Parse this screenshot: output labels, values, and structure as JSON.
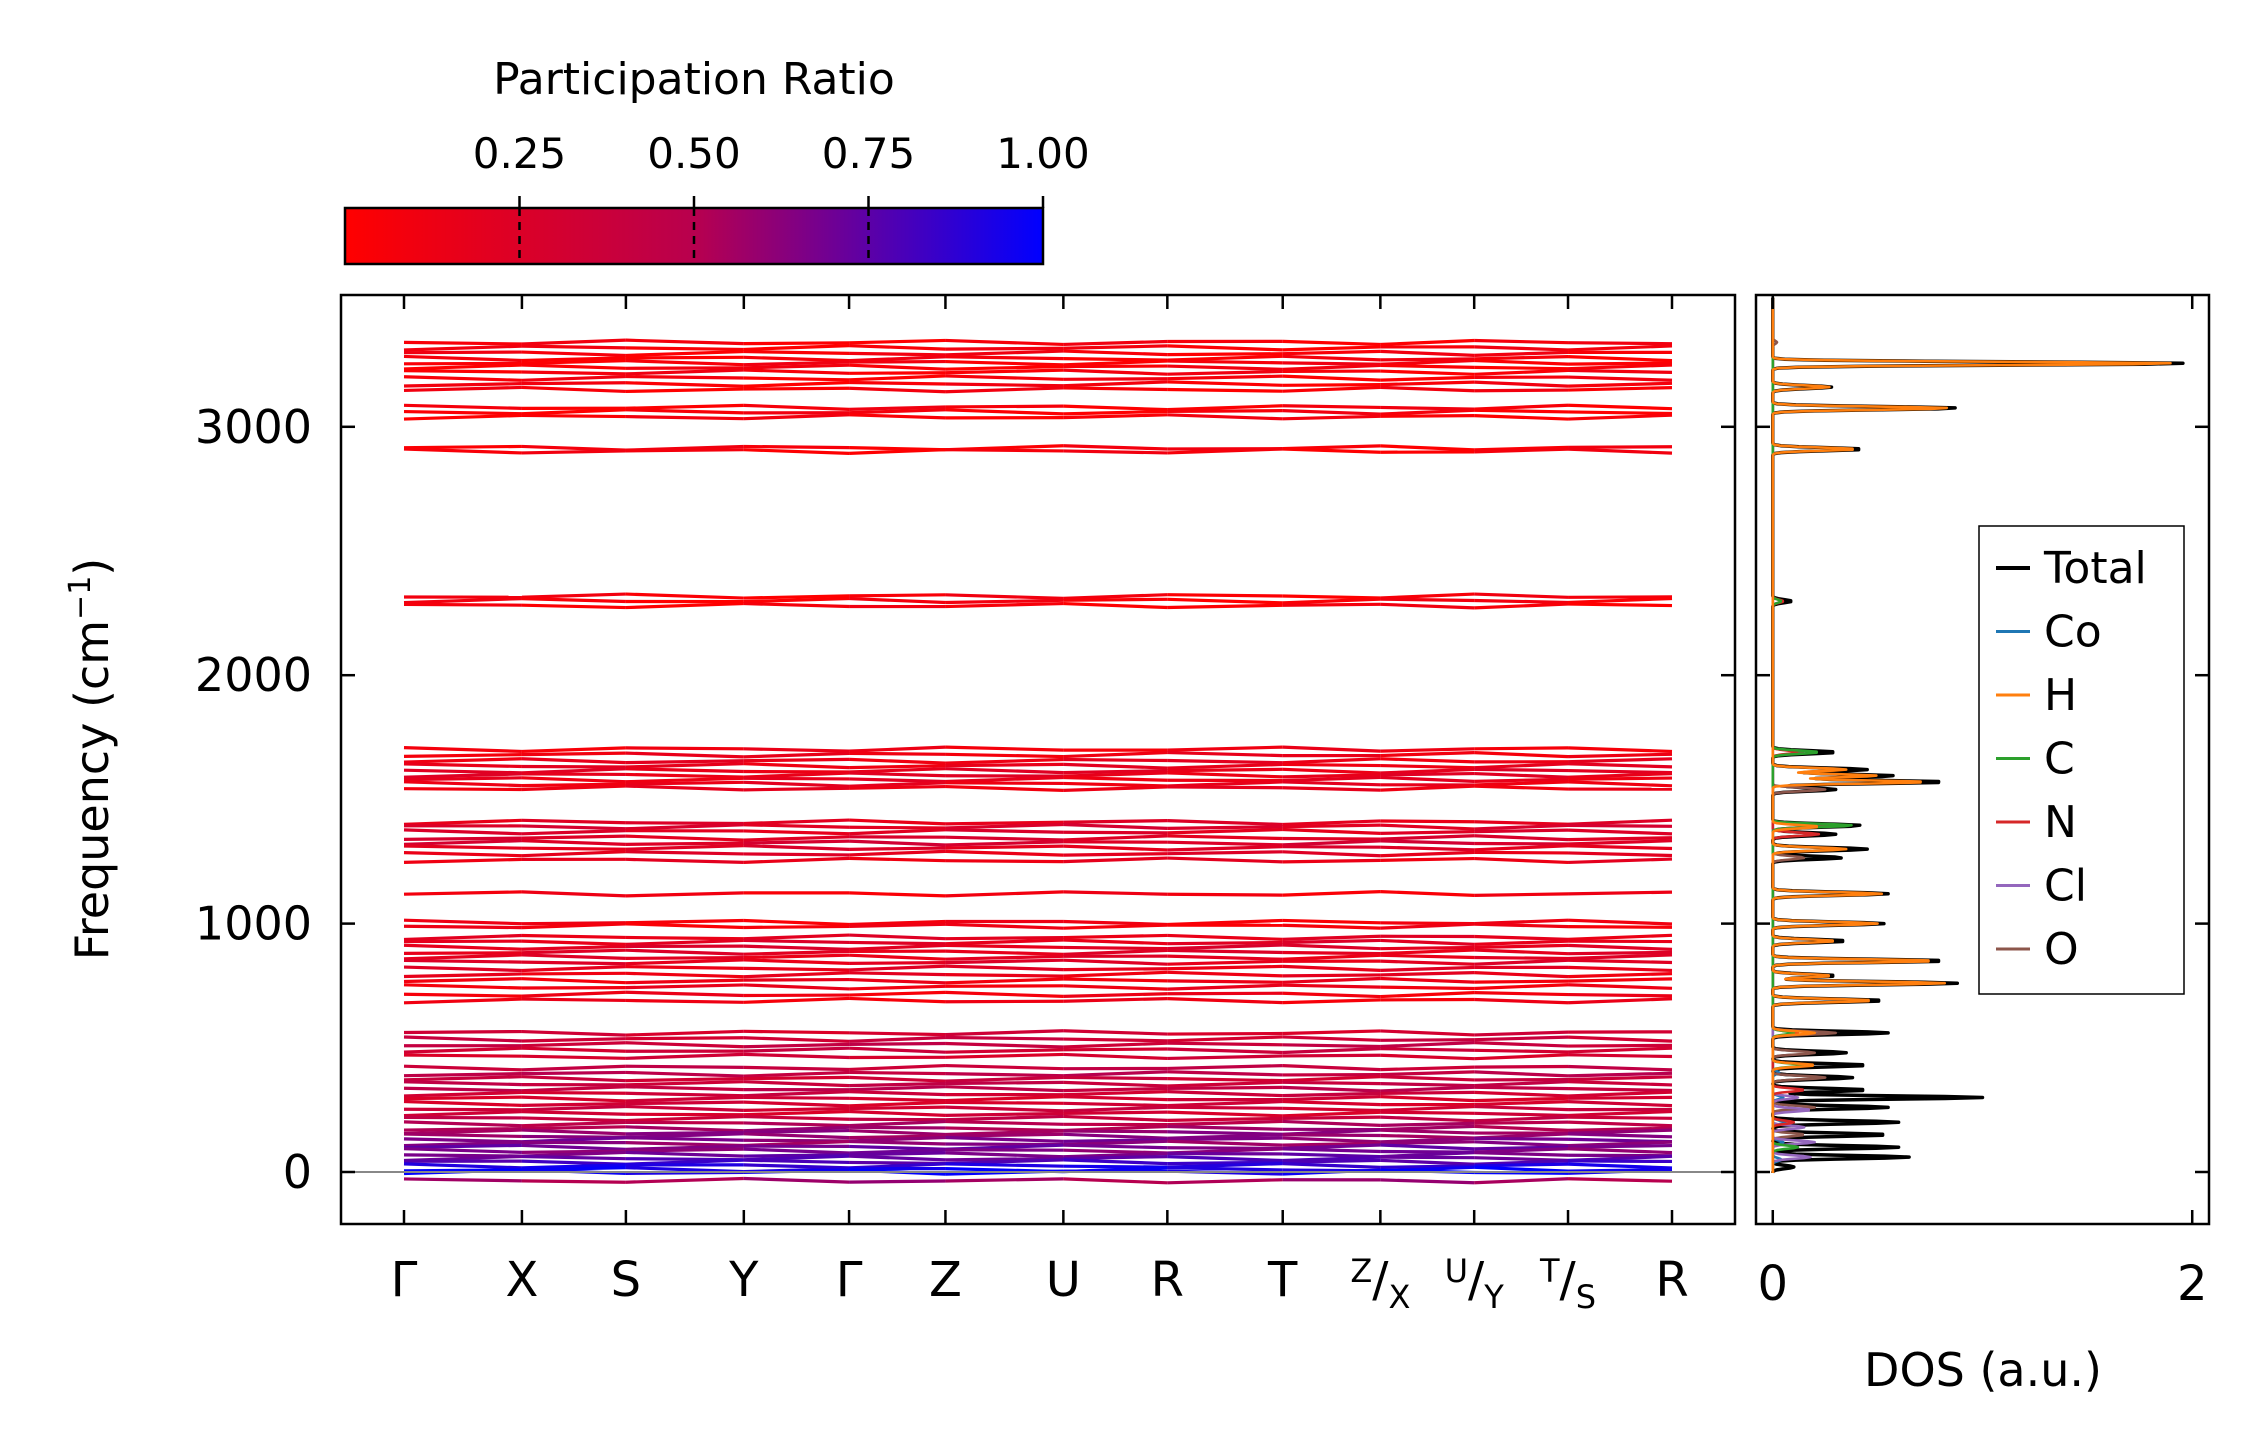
{
  "chart_data": [
    {
      "type": "line",
      "title": "",
      "xlabel": "",
      "ylabel": "Frequency (cm⁻¹)",
      "ylabel_main": "Frequency (cm",
      "ylabel_exp": "−1",
      "ylabel_close": ")",
      "ylim": [
        -200,
        3520
      ],
      "yticks": [
        0,
        1000,
        2000,
        3000
      ],
      "ytick_labels": [
        "0",
        "1000",
        "2000",
        "3000"
      ],
      "kpath_labels": [
        "Γ",
        "X",
        "S",
        "Y",
        "Γ",
        "Z",
        "U",
        "R",
        "T"
      ],
      "kpath_positions": [
        0,
        0.093,
        0.175,
        0.268,
        0.351,
        0.427,
        0.52,
        0.602,
        0.693,
        0.77,
        0.844,
        0.918,
        1.0
      ],
      "split_labels": [
        {
          "sup": "Z",
          "sub": "X"
        },
        {
          "sup": "U",
          "sub": "Y"
        },
        {
          "sup": "T",
          "sub": "S"
        }
      ],
      "end_label": "R",
      "bands": [
        {
          "frequency": 3340,
          "pr": 0.05
        },
        {
          "frequency": 3318,
          "pr": 0.05
        },
        {
          "frequency": 3296,
          "pr": 0.06
        },
        {
          "frequency": 3275,
          "pr": 0.05
        },
        {
          "frequency": 3258,
          "pr": 0.06
        },
        {
          "frequency": 3240,
          "pr": 0.05
        },
        {
          "frequency": 3220,
          "pr": 0.06
        },
        {
          "frequency": 3196,
          "pr": 0.05
        },
        {
          "frequency": 3172,
          "pr": 0.05
        },
        {
          "frequency": 3150,
          "pr": 0.05
        },
        {
          "frequency": 3078,
          "pr": 0.05
        },
        {
          "frequency": 3060,
          "pr": 0.05
        },
        {
          "frequency": 3040,
          "pr": 0.05
        },
        {
          "frequency": 2915,
          "pr": 0.05
        },
        {
          "frequency": 2902,
          "pr": 0.05
        },
        {
          "frequency": 2318,
          "pr": 0.05
        },
        {
          "frequency": 2300,
          "pr": 0.05
        },
        {
          "frequency": 2280,
          "pr": 0.05
        },
        {
          "frequency": 1702,
          "pr": 0.1
        },
        {
          "frequency": 1680,
          "pr": 0.12
        },
        {
          "frequency": 1655,
          "pr": 0.15
        },
        {
          "frequency": 1635,
          "pr": 0.15
        },
        {
          "frequency": 1615,
          "pr": 0.18
        },
        {
          "frequency": 1598,
          "pr": 0.18
        },
        {
          "frequency": 1580,
          "pr": 0.16
        },
        {
          "frequency": 1562,
          "pr": 0.15
        },
        {
          "frequency": 1545,
          "pr": 0.14
        },
        {
          "frequency": 1408,
          "pr": 0.2
        },
        {
          "frequency": 1390,
          "pr": 0.25
        },
        {
          "frequency": 1370,
          "pr": 0.22
        },
        {
          "frequency": 1345,
          "pr": 0.24
        },
        {
          "frequency": 1325,
          "pr": 0.28
        },
        {
          "frequency": 1305,
          "pr": 0.22
        },
        {
          "frequency": 1282,
          "pr": 0.2
        },
        {
          "frequency": 1255,
          "pr": 0.15
        },
        {
          "frequency": 1120,
          "pr": 0.08
        },
        {
          "frequency": 1005,
          "pr": 0.08
        },
        {
          "frequency": 990,
          "pr": 0.08
        },
        {
          "frequency": 945,
          "pr": 0.18
        },
        {
          "frequency": 925,
          "pr": 0.2
        },
        {
          "frequency": 905,
          "pr": 0.22
        },
        {
          "frequency": 885,
          "pr": 0.2
        },
        {
          "frequency": 865,
          "pr": 0.18
        },
        {
          "frequency": 845,
          "pr": 0.2
        },
        {
          "frequency": 820,
          "pr": 0.18
        },
        {
          "frequency": 795,
          "pr": 0.15
        },
        {
          "frequency": 770,
          "pr": 0.12
        },
        {
          "frequency": 745,
          "pr": 0.12
        },
        {
          "frequency": 715,
          "pr": 0.1
        },
        {
          "frequency": 690,
          "pr": 0.1
        },
        {
          "frequency": 560,
          "pr": 0.3
        },
        {
          "frequency": 535,
          "pr": 0.35
        },
        {
          "frequency": 512,
          "pr": 0.4
        },
        {
          "frequency": 490,
          "pr": 0.35
        },
        {
          "frequency": 465,
          "pr": 0.3
        },
        {
          "frequency": 420,
          "pr": 0.4
        },
        {
          "frequency": 395,
          "pr": 0.45
        },
        {
          "frequency": 375,
          "pr": 0.35
        },
        {
          "frequency": 355,
          "pr": 0.4
        },
        {
          "frequency": 335,
          "pr": 0.45
        },
        {
          "frequency": 315,
          "pr": 0.35
        },
        {
          "frequency": 295,
          "pr": 0.3
        },
        {
          "frequency": 275,
          "pr": 0.3
        },
        {
          "frequency": 255,
          "pr": 0.35
        },
        {
          "frequency": 235,
          "pr": 0.3
        },
        {
          "frequency": 215,
          "pr": 0.4
        },
        {
          "frequency": 195,
          "pr": 0.5
        },
        {
          "frequency": 175,
          "pr": 0.55
        },
        {
          "frequency": 160,
          "pr": 0.6
        },
        {
          "frequency": 145,
          "pr": 0.6
        },
        {
          "frequency": 130,
          "pr": 0.65
        },
        {
          "frequency": 115,
          "pr": 0.6
        },
        {
          "frequency": 100,
          "pr": 0.7
        },
        {
          "frequency": 85,
          "pr": 0.65
        },
        {
          "frequency": 70,
          "pr": 0.7
        },
        {
          "frequency": 55,
          "pr": 0.75
        },
        {
          "frequency": 40,
          "pr": 0.8
        },
        {
          "frequency": 25,
          "pr": 0.9
        },
        {
          "frequency": 10,
          "pr": 0.95
        },
        {
          "frequency": 0,
          "pr": 0.98
        },
        {
          "frequency": -35,
          "pr": 0.55
        }
      ]
    },
    {
      "type": "line",
      "title": "",
      "xlabel": "DOS (a.u.)",
      "ylabel": "",
      "xlim": [
        -0.08,
        2.08
      ],
      "xticks": [
        0,
        2
      ],
      "xtick_labels": [
        "0",
        "2"
      ],
      "ylim": [
        -200,
        3520
      ],
      "legend_position": "right",
      "series": [
        {
          "name": "Total",
          "color": "#000000",
          "peaks": [
            {
              "f": 3255,
              "a": 1.98
            },
            {
              "f": 3160,
              "a": 0.28
            },
            {
              "f": 3075,
              "a": 0.88
            },
            {
              "f": 2910,
              "a": 0.43
            },
            {
              "f": 2298,
              "a": 0.09
            },
            {
              "f": 1690,
              "a": 0.3
            },
            {
              "f": 1620,
              "a": 0.45
            },
            {
              "f": 1595,
              "a": 0.58
            },
            {
              "f": 1570,
              "a": 0.83
            },
            {
              "f": 1540,
              "a": 0.3
            },
            {
              "f": 1395,
              "a": 0.42
            },
            {
              "f": 1360,
              "a": 0.3
            },
            {
              "f": 1300,
              "a": 0.45
            },
            {
              "f": 1265,
              "a": 0.33
            },
            {
              "f": 1120,
              "a": 0.55
            },
            {
              "f": 1000,
              "a": 0.53
            },
            {
              "f": 930,
              "a": 0.35
            },
            {
              "f": 850,
              "a": 0.83
            },
            {
              "f": 790,
              "a": 0.3
            },
            {
              "f": 760,
              "a": 0.88
            },
            {
              "f": 690,
              "a": 0.53
            },
            {
              "f": 560,
              "a": 0.55
            },
            {
              "f": 480,
              "a": 0.35
            },
            {
              "f": 430,
              "a": 0.45
            },
            {
              "f": 380,
              "a": 0.38
            },
            {
              "f": 330,
              "a": 0.45
            },
            {
              "f": 300,
              "a": 1.0
            },
            {
              "f": 260,
              "a": 0.55
            },
            {
              "f": 200,
              "a": 0.6
            },
            {
              "f": 150,
              "a": 0.55
            },
            {
              "f": 100,
              "a": 0.6
            },
            {
              "f": 60,
              "a": 0.65
            },
            {
              "f": 20,
              "a": 0.1
            }
          ]
        },
        {
          "name": "Co",
          "color": "#1f77b4",
          "peaks": [
            {
              "f": 400,
              "a": 0.03
            },
            {
              "f": 300,
              "a": 0.05
            },
            {
              "f": 200,
              "a": 0.06
            },
            {
              "f": 120,
              "a": 0.05
            },
            {
              "f": 50,
              "a": 0.04
            }
          ]
        },
        {
          "name": "H",
          "color": "#ff7f0e",
          "peaks": [
            {
              "f": 3255,
              "a": 1.92
            },
            {
              "f": 3160,
              "a": 0.27
            },
            {
              "f": 3075,
              "a": 0.84
            },
            {
              "f": 2910,
              "a": 0.4
            },
            {
              "f": 1620,
              "a": 0.35
            },
            {
              "f": 1595,
              "a": 0.5
            },
            {
              "f": 1570,
              "a": 0.74
            },
            {
              "f": 1390,
              "a": 0.22
            },
            {
              "f": 1300,
              "a": 0.35
            },
            {
              "f": 1120,
              "a": 0.52
            },
            {
              "f": 1000,
              "a": 0.5
            },
            {
              "f": 930,
              "a": 0.3
            },
            {
              "f": 850,
              "a": 0.78
            },
            {
              "f": 790,
              "a": 0.28
            },
            {
              "f": 760,
              "a": 0.82
            },
            {
              "f": 690,
              "a": 0.48
            },
            {
              "f": 560,
              "a": 0.2
            },
            {
              "f": 430,
              "a": 0.2
            }
          ]
        },
        {
          "name": "C",
          "color": "#2ca02c",
          "peaks": [
            {
              "f": 2298,
              "a": 0.04
            },
            {
              "f": 1690,
              "a": 0.22
            },
            {
              "f": 1395,
              "a": 0.38
            },
            {
              "f": 560,
              "a": 0.1
            },
            {
              "f": 430,
              "a": 0.15
            },
            {
              "f": 100,
              "a": 0.12
            }
          ]
        },
        {
          "name": "N",
          "color": "#d62728",
          "peaks": [
            {
              "f": 2298,
              "a": 0.05
            },
            {
              "f": 1690,
              "a": 0.12
            },
            {
              "f": 1360,
              "a": 0.22
            },
            {
              "f": 560,
              "a": 0.12
            },
            {
              "f": 330,
              "a": 0.15
            },
            {
              "f": 200,
              "a": 0.1
            }
          ]
        },
        {
          "name": "Cl",
          "color": "#9467bd",
          "peaks": [
            {
              "f": 300,
              "a": 0.12
            },
            {
              "f": 250,
              "a": 0.18
            },
            {
              "f": 180,
              "a": 0.15
            },
            {
              "f": 120,
              "a": 0.2
            },
            {
              "f": 60,
              "a": 0.18
            }
          ]
        },
        {
          "name": "O",
          "color": "#8c564b",
          "peaks": [
            {
              "f": 3340,
              "a": 0.02
            },
            {
              "f": 2298,
              "a": 0.04
            },
            {
              "f": 1690,
              "a": 0.15
            },
            {
              "f": 1540,
              "a": 0.25
            },
            {
              "f": 1395,
              "a": 0.3
            },
            {
              "f": 1265,
              "a": 0.15
            },
            {
              "f": 560,
              "a": 0.3
            },
            {
              "f": 480,
              "a": 0.2
            },
            {
              "f": 380,
              "a": 0.25
            },
            {
              "f": 260,
              "a": 0.2
            },
            {
              "f": 150,
              "a": 0.15
            }
          ]
        }
      ]
    }
  ],
  "colorbar": {
    "title": "Participation Ratio",
    "tick_labels": [
      "0.25",
      "0.50",
      "0.75",
      "1.00"
    ],
    "ticks": [
      0.25,
      0.5,
      0.75,
      1.0
    ],
    "range": [
      0.0,
      1.0
    ],
    "color_low": "#ff0000",
    "color_mid": "#b8004e",
    "color_high": "#0000ff"
  }
}
